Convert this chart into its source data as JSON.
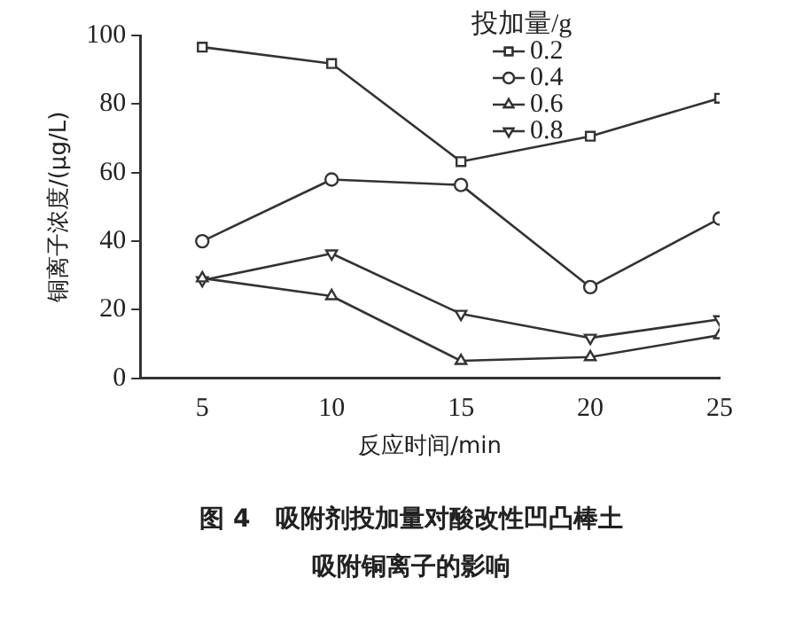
{
  "chart_data": {
    "type": "line",
    "xlabel": "反应时间/min",
    "ylabel": "铜离子浓度/(μg/L)",
    "legend_title": "投加量/g",
    "x": [
      5,
      10,
      15,
      20,
      25
    ],
    "series": [
      {
        "name": "0.2",
        "color": "#333333",
        "marker": "square",
        "values": [
          96.6,
          91.8,
          63.2,
          70.6,
          81.7
        ]
      },
      {
        "name": "0.4",
        "color": "#333333",
        "marker": "circle",
        "values": [
          40,
          58,
          56.4,
          26.6,
          46.6
        ]
      },
      {
        "name": "0.6",
        "color": "#333333",
        "marker": "triangle",
        "values": [
          29.2,
          24,
          5.1,
          6.2,
          12.6
        ]
      },
      {
        "name": "0.8",
        "color": "#333333",
        "marker": "triangle_down",
        "values": [
          28.6,
          36.4,
          18.8,
          11.8,
          17.2
        ]
      }
    ],
    "xlim": [
      2.6,
      25
    ],
    "xticks": [
      5,
      10,
      15,
      20,
      25
    ],
    "ylim": [
      0,
      100
    ],
    "yticks": [
      0,
      20,
      40,
      60,
      80,
      100
    ],
    "grid": false,
    "legend": "top right",
    "line_style": "solid",
    "annotations": [
      "图 4　吸附剂投加量对酸改性凹凸棒土",
      "吸附铜离子的影响"
    ]
  }
}
